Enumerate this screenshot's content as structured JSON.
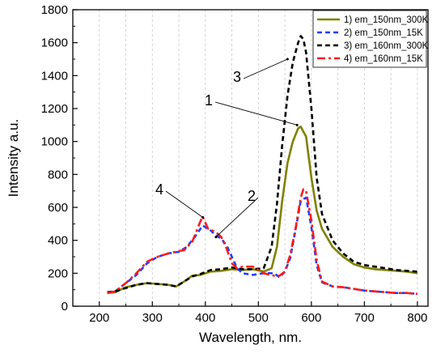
{
  "chart_data": {
    "type": "line",
    "xlabel": "Wavelength, nm.",
    "ylabel": "Intensity a.u.",
    "xlim": [
      150,
      820
    ],
    "ylim": [
      0,
      1800
    ],
    "xticks": [
      200,
      300,
      400,
      500,
      600,
      700,
      800
    ],
    "yticks": [
      0,
      200,
      400,
      600,
      800,
      1000,
      1200,
      1400,
      1600,
      1800
    ],
    "grid": "vertical dashed gridlines at every 50 nm",
    "legend_placement": "top-right",
    "series": [
      {
        "name": "1) em_150nm_300K",
        "color": "#808000",
        "dash": "solid",
        "x": [
          215,
          230,
          250,
          270,
          290,
          310,
          330,
          345,
          360,
          375,
          390,
          410,
          430,
          450,
          470,
          490,
          510,
          525,
          535,
          545,
          555,
          565,
          575,
          580,
          590,
          600,
          610,
          620,
          640,
          660,
          680,
          700,
          720,
          740,
          760,
          780,
          800
        ],
        "y": [
          80,
          85,
          115,
          130,
          140,
          135,
          130,
          120,
          150,
          185,
          190,
          210,
          215,
          225,
          220,
          225,
          210,
          230,
          360,
          640,
          870,
          1000,
          1080,
          1090,
          1030,
          780,
          580,
          470,
          360,
          300,
          255,
          235,
          225,
          220,
          215,
          210,
          200
        ]
      },
      {
        "name": "2) em_150nm_15K",
        "color": "#1f3fff",
        "dash": "dashed",
        "x": [
          215,
          230,
          250,
          270,
          290,
          310,
          330,
          350,
          365,
          380,
          395,
          410,
          420,
          430,
          440,
          450,
          460,
          470,
          490,
          510,
          530,
          540,
          550,
          560,
          570,
          580,
          590,
          600,
          610,
          620,
          640,
          660,
          680,
          700,
          720,
          740,
          760,
          780,
          800
        ],
        "y": [
          80,
          90,
          140,
          190,
          260,
          300,
          320,
          330,
          360,
          420,
          490,
          460,
          430,
          410,
          370,
          300,
          230,
          200,
          190,
          200,
          200,
          175,
          210,
          290,
          460,
          640,
          660,
          480,
          250,
          145,
          120,
          115,
          105,
          95,
          90,
          85,
          80,
          80,
          75
        ]
      },
      {
        "name": "3) em_160nm_300K",
        "color": "#000000",
        "dash": "dashed",
        "x": [
          215,
          230,
          250,
          270,
          290,
          310,
          330,
          345,
          360,
          375,
          390,
          410,
          430,
          450,
          470,
          490,
          510,
          525,
          535,
          545,
          555,
          565,
          575,
          580,
          585,
          590,
          600,
          610,
          620,
          640,
          660,
          680,
          700,
          720,
          740,
          760,
          780,
          800
        ],
        "y": [
          85,
          90,
          110,
          130,
          140,
          135,
          130,
          120,
          150,
          180,
          195,
          220,
          225,
          235,
          225,
          225,
          230,
          360,
          620,
          980,
          1280,
          1480,
          1600,
          1640,
          1620,
          1540,
          1200,
          780,
          560,
          400,
          320,
          270,
          250,
          240,
          230,
          220,
          215,
          210
        ]
      },
      {
        "name": "4) em_160nm_15K",
        "color": "#ff1a1a",
        "dash": "dashdot",
        "x": [
          215,
          230,
          250,
          270,
          290,
          310,
          330,
          350,
          360,
          375,
          390,
          395,
          405,
          420,
          430,
          440,
          450,
          460,
          470,
          490,
          510,
          530,
          540,
          550,
          560,
          570,
          580,
          585,
          590,
          600,
          610,
          620,
          640,
          660,
          680,
          700,
          720,
          740,
          760,
          780,
          800
        ],
        "y": [
          80,
          90,
          140,
          200,
          270,
          300,
          320,
          335,
          340,
          390,
          510,
          545,
          470,
          450,
          420,
          350,
          260,
          230,
          240,
          240,
          200,
          185,
          185,
          210,
          310,
          470,
          660,
          710,
          700,
          520,
          280,
          150,
          120,
          115,
          105,
          95,
          90,
          85,
          80,
          80,
          75
        ]
      }
    ],
    "annotations": [
      {
        "label": "1",
        "target_x": 573,
        "target_y": 1100
      },
      {
        "label": "2",
        "target_x": 420,
        "target_y": 420
      },
      {
        "label": "3",
        "target_x": 555,
        "target_y": 1500
      },
      {
        "label": "4",
        "target_x": 395,
        "target_y": 540
      }
    ]
  }
}
